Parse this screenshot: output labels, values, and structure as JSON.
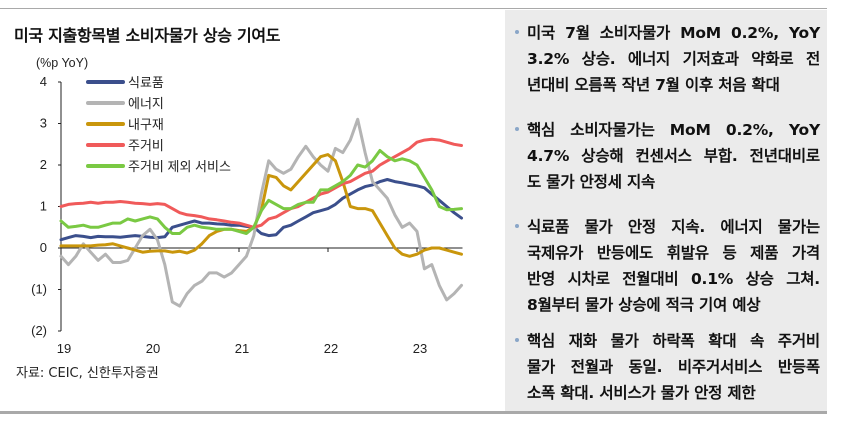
{
  "title": "미국 지출항목별 소비자물가 상승 기여도",
  "source": "자료: CEIC, 신한투자증권",
  "chart_data": {
    "type": "line",
    "title": "미국 지출항목별 소비자물가 상승 기여도",
    "ylabel": "(%p YoY)",
    "ylim": [
      -2,
      4
    ],
    "yticks": [
      "4",
      "3",
      "2",
      "1",
      "0",
      "(1)",
      "(2)"
    ],
    "ytick_values": [
      4,
      3,
      2,
      1,
      0,
      -1,
      -2
    ],
    "xticks": [
      "19",
      "20",
      "21",
      "22",
      "23"
    ],
    "x_start": "2019-01",
    "x_end": "2023-07",
    "frequency": "monthly",
    "legend_position": "top-left",
    "grid": false,
    "series": [
      {
        "name": "식료품",
        "color": "#3b4f8c",
        "values": [
          0.2,
          0.25,
          0.3,
          0.28,
          0.25,
          0.28,
          0.27,
          0.27,
          0.26,
          0.28,
          0.3,
          0.28,
          0.26,
          0.25,
          0.27,
          0.5,
          0.55,
          0.6,
          0.65,
          0.6,
          0.6,
          0.58,
          0.57,
          0.55,
          0.55,
          0.52,
          0.5,
          0.35,
          0.3,
          0.32,
          0.5,
          0.55,
          0.65,
          0.75,
          0.85,
          0.9,
          0.95,
          1.05,
          1.2,
          1.3,
          1.4,
          1.48,
          1.52,
          1.6,
          1.65,
          1.6,
          1.57,
          1.53,
          1.5,
          1.45,
          1.3,
          1.15,
          1.0,
          0.85,
          0.72
        ]
      },
      {
        "name": "에너지",
        "color": "#b4b4b4",
        "values": [
          -0.2,
          -0.4,
          -0.2,
          0.1,
          -0.1,
          -0.3,
          -0.15,
          -0.35,
          -0.35,
          -0.3,
          0.0,
          0.3,
          0.45,
          0.2,
          -0.4,
          -1.3,
          -1.4,
          -1.1,
          -0.9,
          -0.8,
          -0.6,
          -0.6,
          -0.7,
          -0.6,
          -0.4,
          -0.2,
          0.3,
          1.3,
          2.1,
          1.9,
          1.8,
          1.9,
          2.2,
          2.45,
          2.2,
          2.0,
          1.85,
          2.4,
          2.3,
          2.6,
          3.1,
          2.3,
          1.6,
          1.4,
          1.2,
          0.8,
          0.5,
          0.6,
          0.4,
          -0.5,
          -0.4,
          -0.9,
          -1.25,
          -1.1,
          -0.9
        ]
      },
      {
        "name": "내구재",
        "color": "#c9960c",
        "values": [
          0.05,
          0.05,
          0.05,
          0.05,
          0.05,
          0.07,
          0.08,
          0.1,
          0.05,
          0,
          -0.05,
          -0.1,
          -0.08,
          -0.07,
          -0.07,
          -0.1,
          -0.08,
          -0.12,
          -0.05,
          0.1,
          0.3,
          0.4,
          0.45,
          0.45,
          0.42,
          0.4,
          0.5,
          0.9,
          1.75,
          1.7,
          1.5,
          1.4,
          1.6,
          1.8,
          2.0,
          2.2,
          2.25,
          2.1,
          1.6,
          1.0,
          0.95,
          0.95,
          0.9,
          0.6,
          0.3,
          0,
          -0.15,
          -0.2,
          -0.15,
          -0.05,
          0,
          0,
          -0.05,
          -0.1,
          -0.15
        ]
      },
      {
        "name": "주거비",
        "color": "#f05a5a",
        "values": [
          1.0,
          1.05,
          1.07,
          1.08,
          1.1,
          1.08,
          1.1,
          1.1,
          1.12,
          1.1,
          1.08,
          1.07,
          1.05,
          1.07,
          1.05,
          0.95,
          0.85,
          0.8,
          0.78,
          0.75,
          0.7,
          0.68,
          0.65,
          0.62,
          0.6,
          0.55,
          0.5,
          0.55,
          0.7,
          0.75,
          0.85,
          0.95,
          1.0,
          1.1,
          1.2,
          1.3,
          1.35,
          1.45,
          1.55,
          1.6,
          1.7,
          1.8,
          1.85,
          2.0,
          2.1,
          2.2,
          2.3,
          2.4,
          2.55,
          2.6,
          2.62,
          2.6,
          2.55,
          2.5,
          2.47
        ]
      },
      {
        "name": "주거비 제외 서비스",
        "color": "#7ac943",
        "values": [
          0.65,
          0.5,
          0.52,
          0.55,
          0.5,
          0.5,
          0.55,
          0.6,
          0.6,
          0.7,
          0.65,
          0.7,
          0.75,
          0.7,
          0.5,
          0.35,
          0.35,
          0.5,
          0.55,
          0.5,
          0.48,
          0.45,
          0.45,
          0.45,
          0.4,
          0.35,
          0.5,
          0.9,
          1.15,
          1.05,
          0.95,
          0.95,
          1.05,
          1.1,
          1.1,
          1.4,
          1.4,
          1.5,
          1.6,
          1.75,
          2.0,
          1.95,
          2.1,
          2.35,
          2.2,
          2.1,
          2.15,
          2.1,
          2.0,
          1.7,
          1.4,
          1.0,
          0.92,
          0.93,
          0.95
        ]
      }
    ]
  },
  "panel": {
    "bullets": [
      {
        "lines": [
          "미국 7월 소비자물가 MoM 0.2%, YoY",
          "3.2% 상승. 에너지 기저효과 약화로 전",
          "년대비 오름폭 작년 7월 이후 처음 확대"
        ]
      },
      {
        "lines": [
          "핵심 소비자물가는 MoM 0.2%, YoY",
          "4.7% 상승해 컨센서스 부합. 전년대비로",
          "도 물가 안정세 지속"
        ]
      },
      {
        "lines": [
          "식료품 물가 안정 지속. 에너지 물가는",
          "국제유가 반등에도 휘발유 등 제품 가격",
          "반영 시차로 전월대비 0.1% 상승 그쳐.",
          "8월부터 물가 상승에 적극 기여 예상"
        ]
      },
      {
        "lines": [
          "핵심 재화 물가 하락폭 확대 속 주거비",
          "물가 전월과 동일. 비주거서비스 반등폭",
          "소폭 확대. 서비스가 물가 안정 제한"
        ]
      }
    ]
  }
}
